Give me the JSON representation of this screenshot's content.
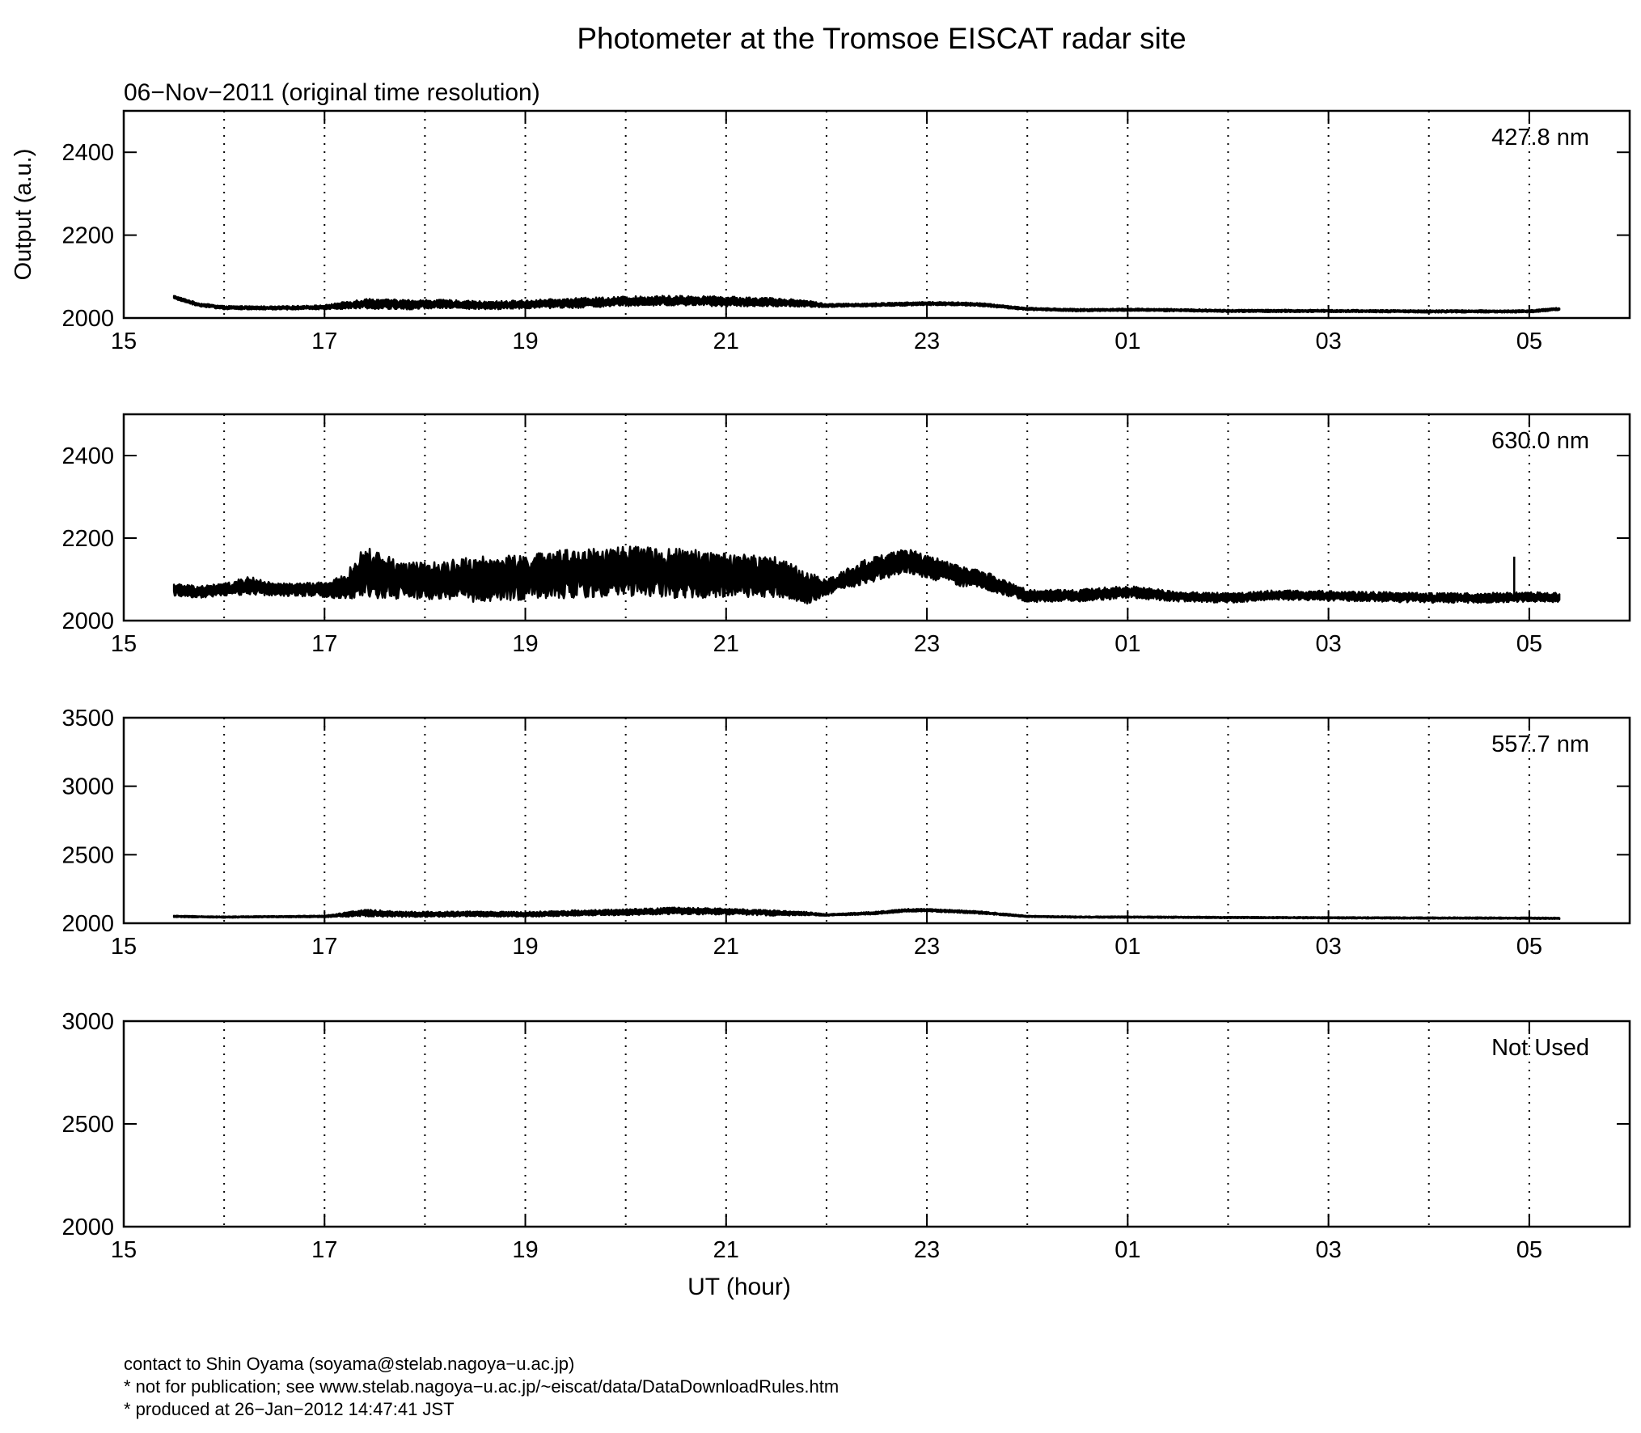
{
  "title": "Photometer at the Tromsoe EISCAT radar site",
  "subtitle": "06−Nov−2011 (original time resolution)",
  "colors": {
    "line": "#000000",
    "background": "#ffffff"
  },
  "chart_data": [
    {
      "type": "line",
      "label": "427.8 nm",
      "ylabel": "Output (a.u.)",
      "xlabel": "",
      "x_range": [
        15,
        30
      ],
      "ylim": [
        2000,
        2500
      ],
      "yticks": [
        "2000",
        "2200",
        "2400"
      ],
      "xticks": [
        "15",
        "17",
        "19",
        "21",
        "23",
        "01",
        "03",
        "05"
      ],
      "grid": "vertical dotted at every hour",
      "series": [
        {
          "x": [
            15.5,
            15.75,
            16.0,
            16.5,
            17.0,
            17.4,
            17.8,
            18.2,
            18.6,
            19.0,
            19.5,
            20.0,
            20.5,
            21.0,
            21.5,
            21.8,
            22.0,
            22.5,
            23.0,
            23.5,
            24.0,
            24.5,
            25.0,
            25.5,
            26.0,
            27.0,
            28.0,
            29.0,
            29.3
          ],
          "y": [
            2050,
            2032,
            2025,
            2024,
            2026,
            2035,
            2032,
            2034,
            2030,
            2033,
            2036,
            2040,
            2042,
            2040,
            2038,
            2035,
            2030,
            2032,
            2035,
            2033,
            2022,
            2019,
            2020,
            2019,
            2017,
            2017,
            2016,
            2016,
            2022
          ],
          "noise": [
            4,
            4,
            4,
            4,
            5,
            12,
            12,
            10,
            10,
            10,
            12,
            12,
            12,
            12,
            10,
            8,
            4,
            4,
            4,
            4,
            3,
            3,
            3,
            3,
            3,
            3,
            3,
            3,
            3
          ]
        }
      ]
    },
    {
      "type": "line",
      "label": "630.0 nm",
      "ylabel": "",
      "xlabel": "",
      "x_range": [
        15,
        30
      ],
      "ylim": [
        2000,
        2500
      ],
      "yticks": [
        "2000",
        "2200",
        "2400"
      ],
      "xticks": [
        "15",
        "17",
        "19",
        "21",
        "23",
        "01",
        "03",
        "05"
      ],
      "grid": "vertical dotted at every hour",
      "series": [
        {
          "x": [
            15.5,
            15.75,
            16.0,
            16.25,
            16.5,
            17.0,
            17.2,
            17.4,
            17.6,
            17.8,
            18.0,
            18.5,
            19.0,
            19.5,
            20.0,
            20.5,
            21.0,
            21.5,
            21.8,
            22.0,
            22.4,
            22.8,
            23.0,
            23.3,
            23.6,
            24.0,
            24.5,
            25.0,
            25.5,
            26.0,
            26.5,
            27.0,
            27.5,
            28.0,
            28.5,
            29.0,
            29.3
          ],
          "y": [
            2075,
            2070,
            2075,
            2085,
            2075,
            2075,
            2080,
            2120,
            2105,
            2100,
            2095,
            2100,
            2105,
            2115,
            2120,
            2115,
            2110,
            2105,
            2080,
            2080,
            2120,
            2145,
            2130,
            2110,
            2095,
            2060,
            2060,
            2070,
            2058,
            2055,
            2062,
            2060,
            2058,
            2055,
            2055,
            2058,
            2055
          ],
          "noise": [
            15,
            15,
            15,
            22,
            15,
            18,
            30,
            60,
            55,
            45,
            45,
            55,
            55,
            60,
            60,
            60,
            55,
            50,
            40,
            20,
            30,
            30,
            30,
            25,
            22,
            15,
            15,
            15,
            12,
            12,
            12,
            12,
            12,
            12,
            12,
            12,
            12
          ]
        }
      ],
      "annotations": [
        {
          "x": 28.85,
          "y": 2155,
          "note": "spike"
        }
      ]
    },
    {
      "type": "line",
      "label": "557.7 nm",
      "ylabel": "",
      "xlabel": "",
      "x_range": [
        15,
        30
      ],
      "ylim": [
        2000,
        3500
      ],
      "yticks": [
        "2000",
        "2500",
        "3000",
        "3500"
      ],
      "xticks": [
        "15",
        "17",
        "19",
        "21",
        "23",
        "01",
        "03",
        "05"
      ],
      "grid": "vertical dotted at every hour",
      "series": [
        {
          "x": [
            15.5,
            16.0,
            16.5,
            17.0,
            17.4,
            17.8,
            18.5,
            19.0,
            19.5,
            20.0,
            20.5,
            21.0,
            21.5,
            21.8,
            22.0,
            22.5,
            22.8,
            23.0,
            23.5,
            24.0,
            24.5,
            25.0,
            26.0,
            27.0,
            28.0,
            29.0,
            29.3
          ],
          "y": [
            2050,
            2045,
            2048,
            2050,
            2075,
            2065,
            2068,
            2065,
            2075,
            2080,
            2090,
            2085,
            2075,
            2070,
            2060,
            2075,
            2095,
            2095,
            2080,
            2050,
            2045,
            2045,
            2042,
            2040,
            2038,
            2037,
            2036
          ],
          "noise": [
            5,
            5,
            5,
            6,
            25,
            20,
            18,
            18,
            20,
            22,
            25,
            22,
            20,
            12,
            6,
            10,
            10,
            10,
            10,
            5,
            5,
            5,
            5,
            5,
            5,
            5,
            5
          ]
        }
      ]
    },
    {
      "type": "line",
      "label": "Not Used",
      "ylabel": "",
      "xlabel": "UT (hour)",
      "x_range": [
        15,
        30
      ],
      "ylim": [
        2000,
        3000
      ],
      "yticks": [
        "2000",
        "2500",
        "3000"
      ],
      "xticks": [
        "15",
        "17",
        "19",
        "21",
        "23",
        "01",
        "03",
        "05"
      ],
      "grid": "vertical dotted at every hour",
      "series": []
    }
  ],
  "footer": {
    "line1": "contact to Shin Oyama (soyama@stelab.nagoya−u.ac.jp)",
    "line2": "* not for publication; see www.stelab.nagoya−u.ac.jp/~eiscat/data/DataDownloadRules.htm",
    "line3": "* produced at 26−Jan−2012 14:47:41 JST"
  }
}
